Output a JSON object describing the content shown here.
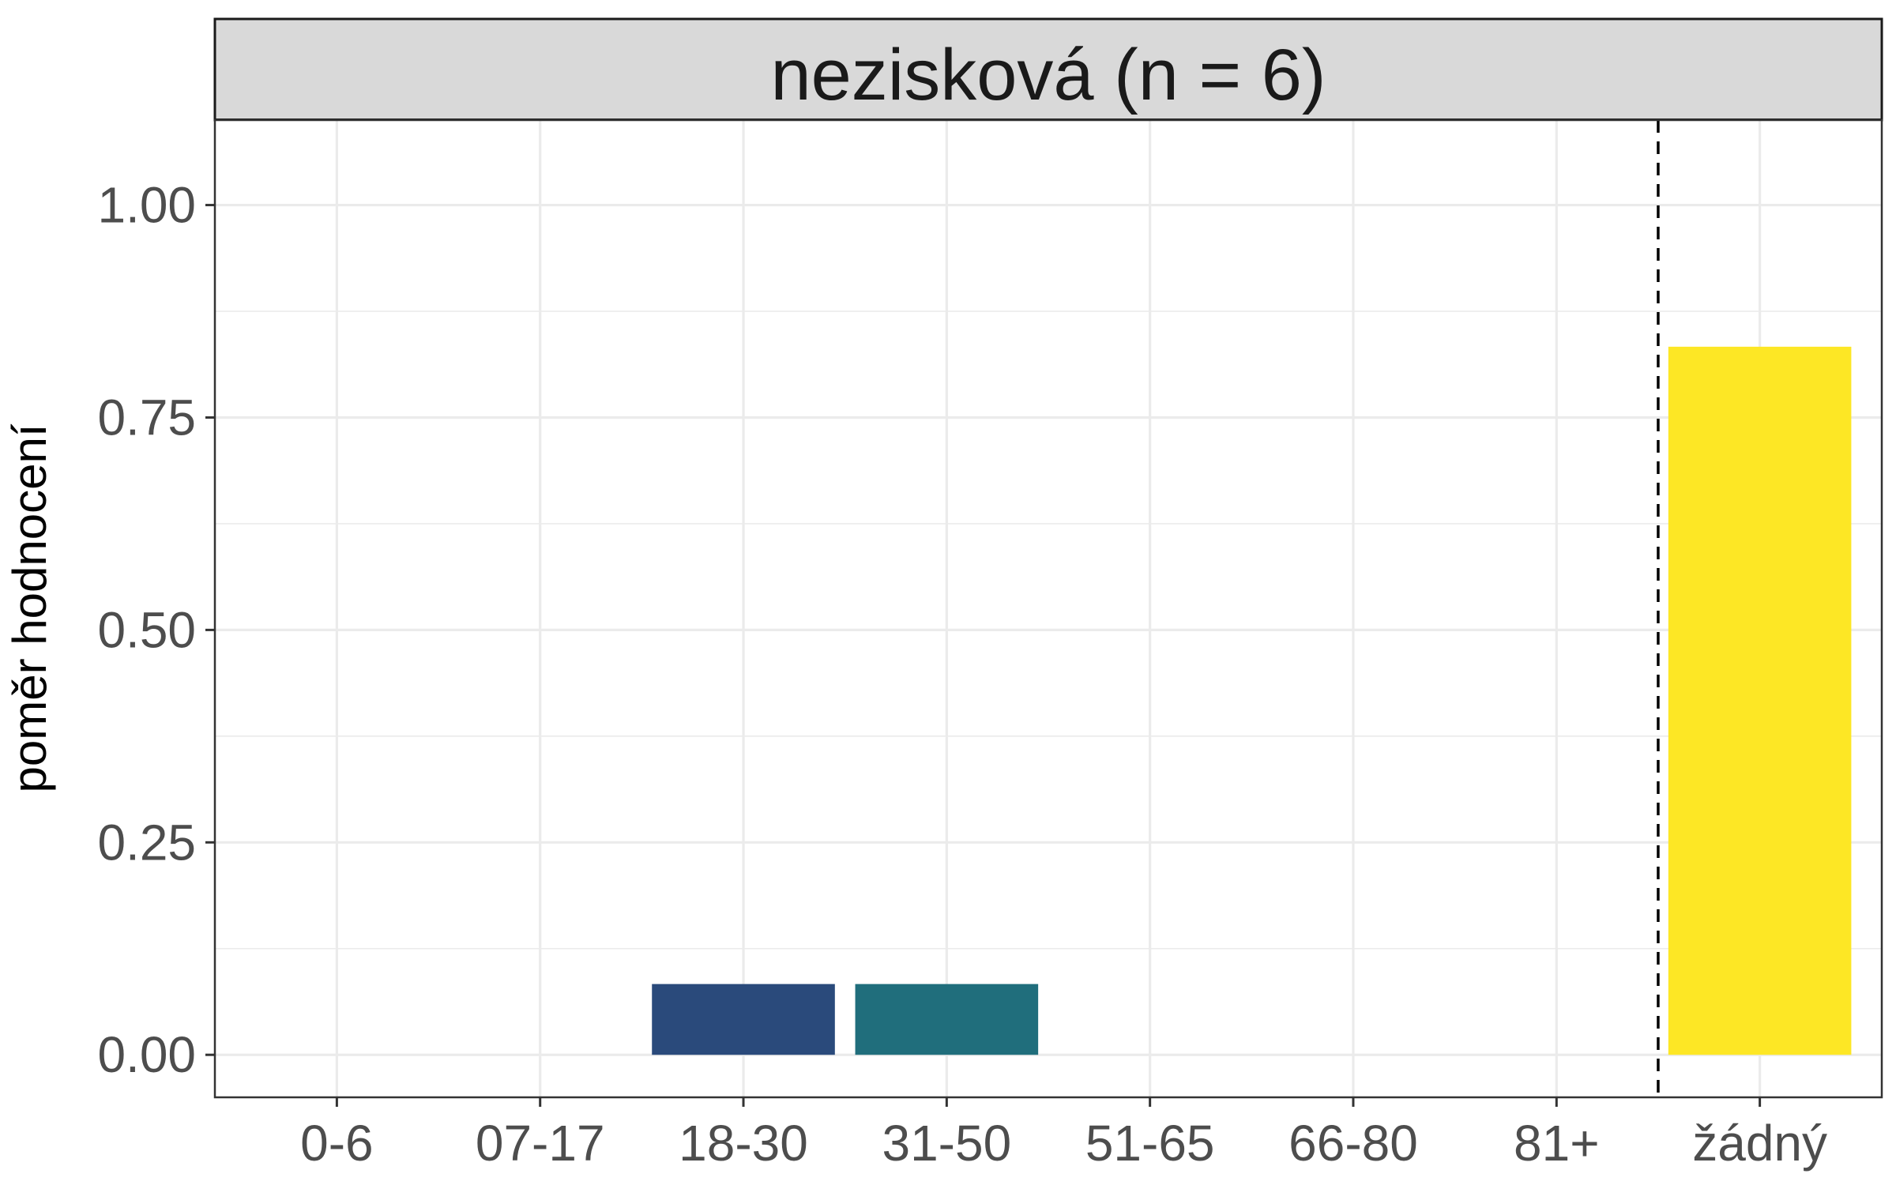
{
  "chart_data": {
    "type": "bar",
    "facet_title": "nezisková (n = 6)",
    "ylabel": "poměr hodnocení",
    "xlabel": "",
    "categories": [
      "0-6",
      "07-17",
      "18-30",
      "31-50",
      "51-65",
      "66-80",
      "81+",
      "žádný"
    ],
    "values": [
      0,
      0,
      0.0833,
      0.0833,
      0,
      0,
      0,
      0.8333
    ],
    "bar_colors": [
      "#440154",
      "#46337e",
      "#2a4a7b",
      "#206e7c",
      "#21918c",
      "#3bbb75",
      "#8fd744",
      "#fde725"
    ],
    "ylim": [
      -0.05,
      1.1
    ],
    "yticks": [
      0,
      0.25,
      0.5,
      0.75,
      1.0
    ],
    "ytick_labels": [
      "0.00",
      "0.25",
      "0.50",
      "0.75",
      "1.00"
    ],
    "reference_line": {
      "between": [
        "81+",
        "žádný"
      ],
      "style": "dashed",
      "color": "#000000"
    },
    "grid": true,
    "theme": "bw",
    "strip_background": "#d9d9d9"
  }
}
